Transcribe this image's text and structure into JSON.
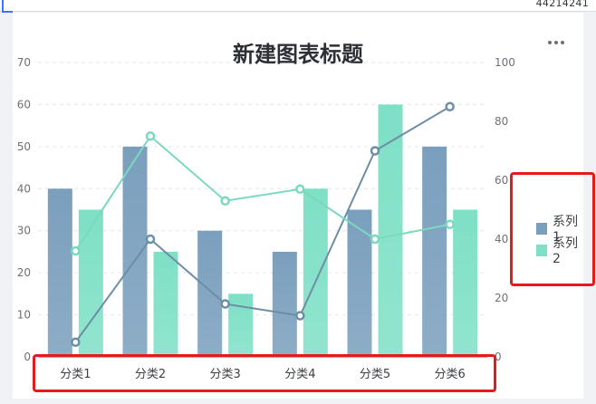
{
  "header": {
    "top_number": "44214241"
  },
  "chart_data": {
    "type": "bar",
    "title": "新建图表标题",
    "categories": [
      "分类1",
      "分类2",
      "分类3",
      "分类4",
      "分类5",
      "分类6"
    ],
    "series": [
      {
        "name": "系列1",
        "type": "bar",
        "axis": "left",
        "color": "#7a9fbd",
        "values": [
          40,
          50,
          30,
          25,
          35,
          50
        ]
      },
      {
        "name": "系列2",
        "type": "bar",
        "axis": "left",
        "color": "#7ee0c6",
        "values": [
          35,
          25,
          15,
          40,
          60,
          35
        ]
      },
      {
        "name": "",
        "type": "line",
        "axis": "right",
        "color": "#6d8ea6",
        "values": [
          5,
          40,
          18,
          14,
          70,
          85
        ]
      },
      {
        "name": "",
        "type": "line",
        "axis": "right",
        "color": "#7ad9bf",
        "values": [
          36,
          75,
          53,
          57,
          40,
          45
        ]
      }
    ],
    "y_left": {
      "min": 0,
      "max": 70,
      "ticks": [
        0,
        10,
        20,
        30,
        40,
        50,
        60,
        70
      ]
    },
    "y_right": {
      "min": 0,
      "max": 100,
      "ticks": [
        0,
        20,
        40,
        60,
        80,
        100
      ]
    },
    "grid": true,
    "legend_position": "right"
  },
  "annotation_color": "#e8191b"
}
